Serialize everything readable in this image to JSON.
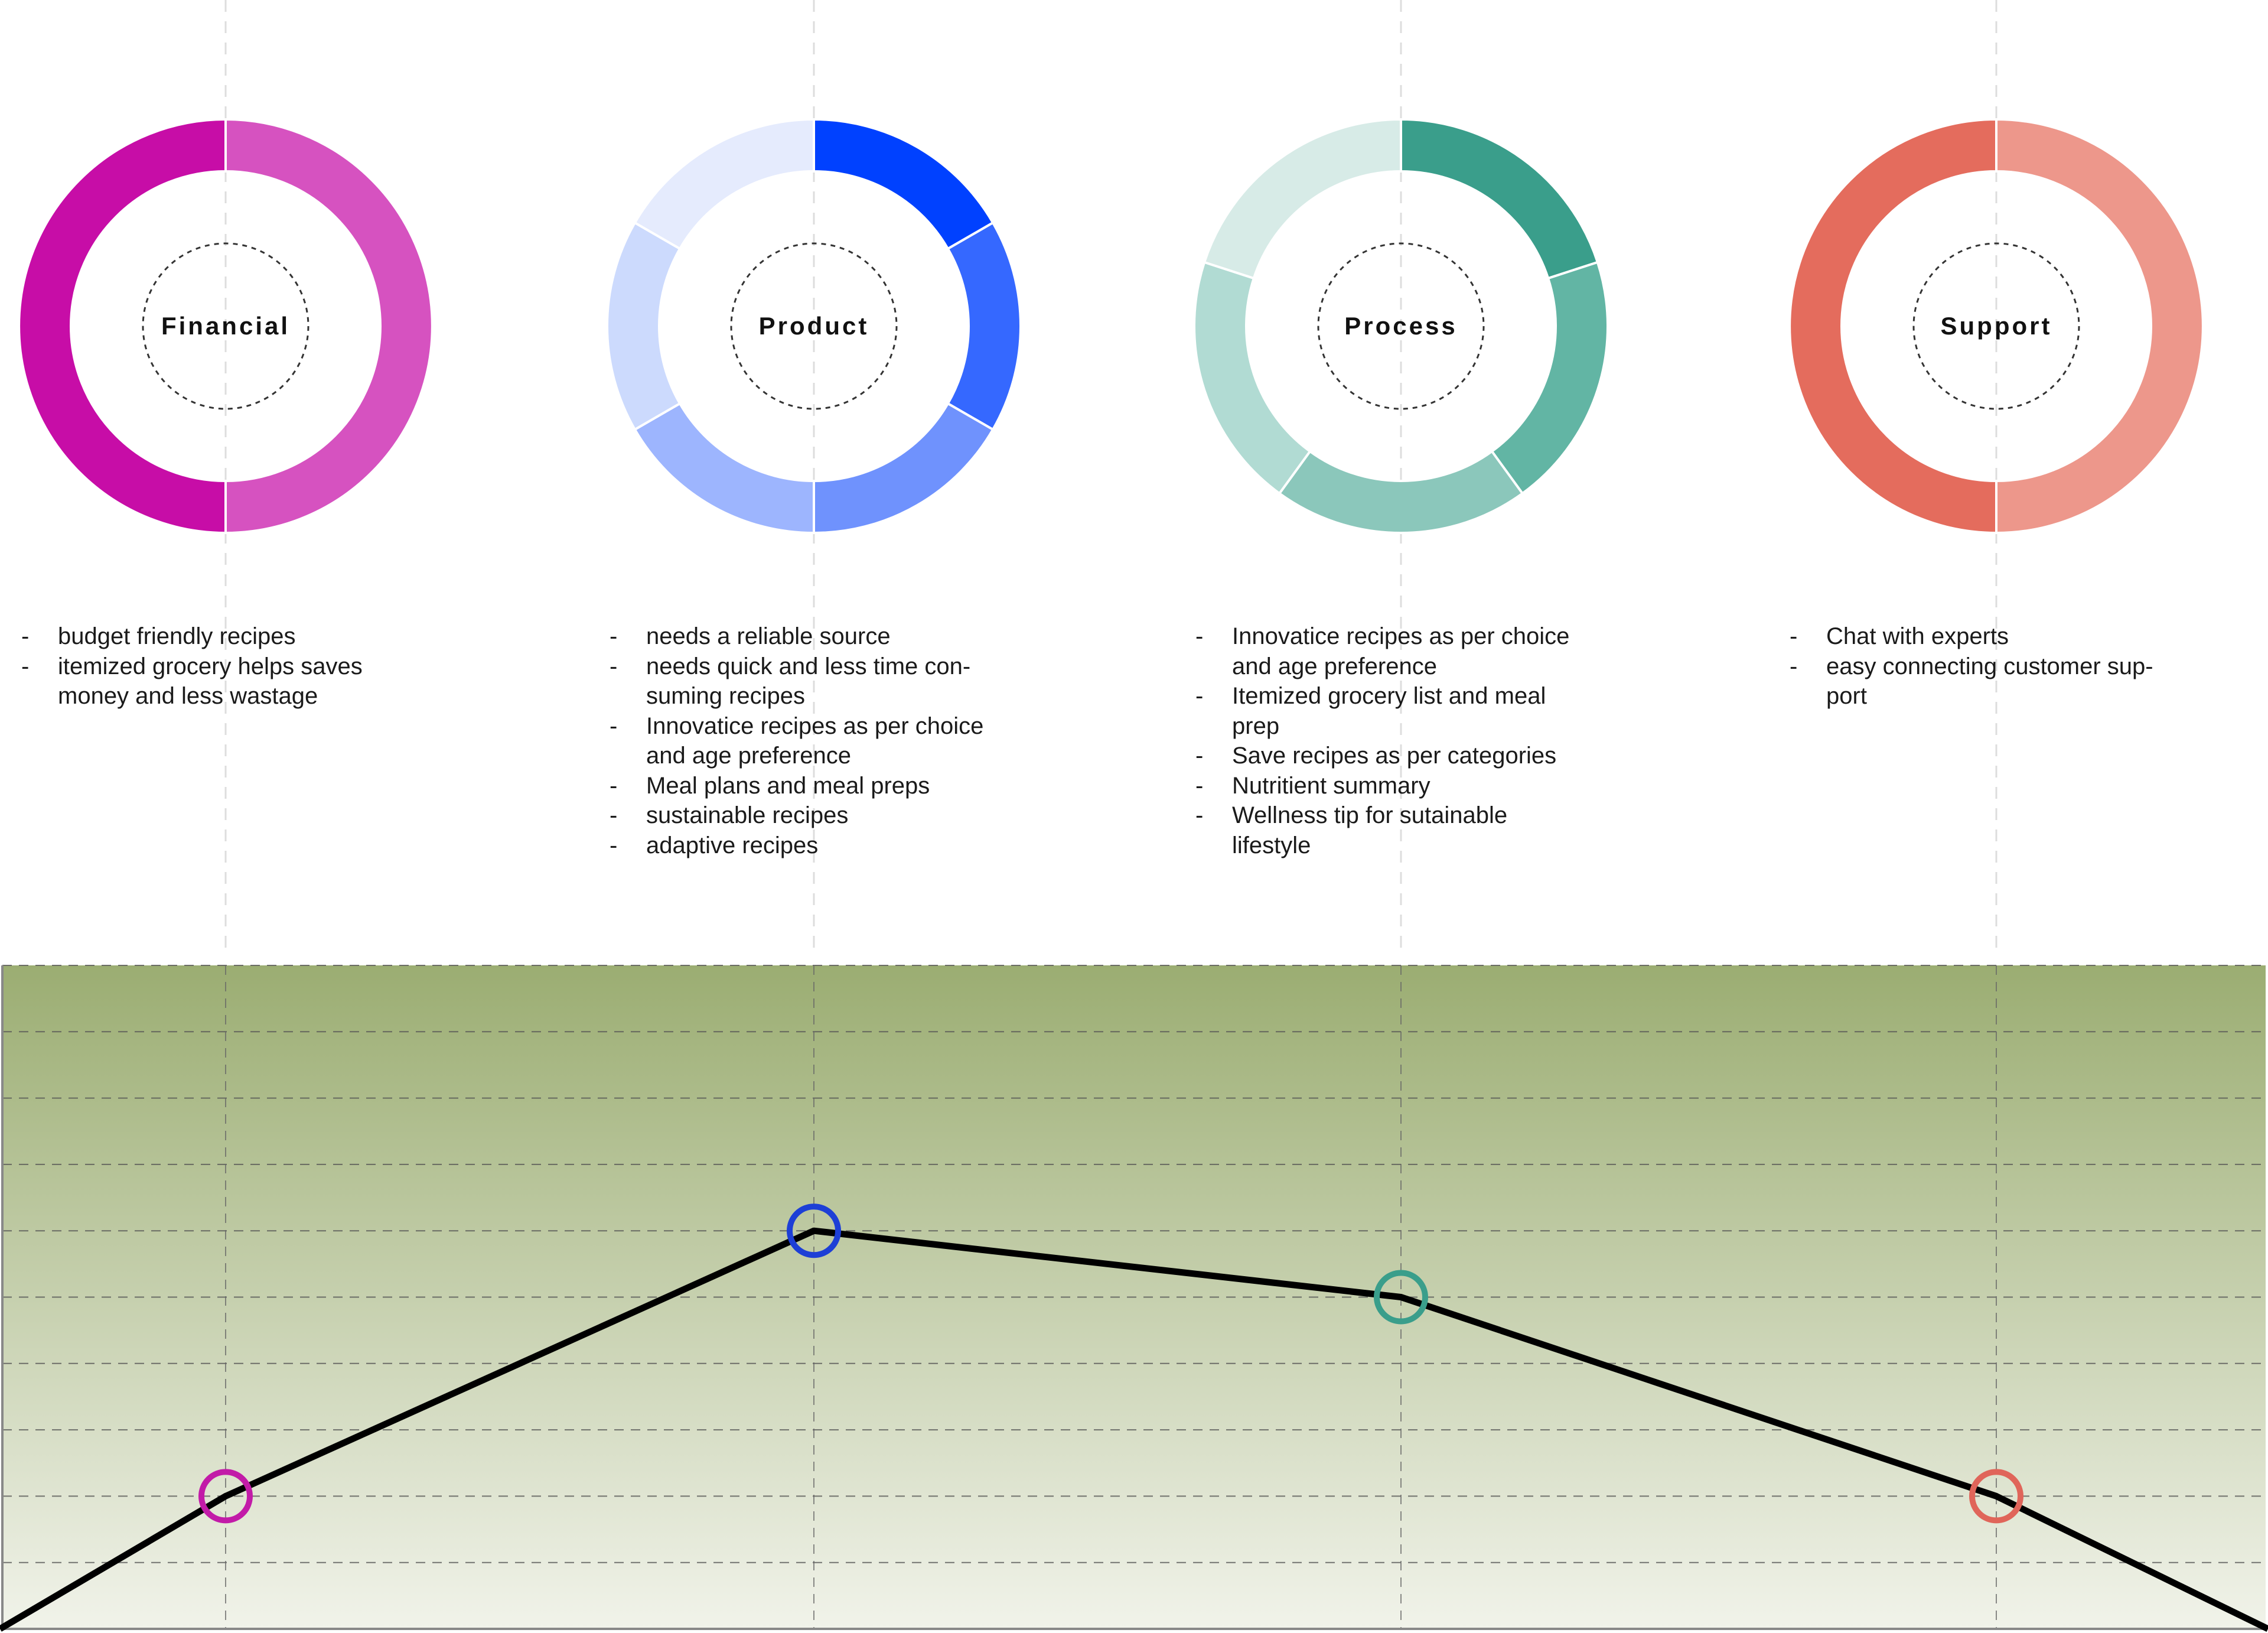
{
  "stages": [
    {
      "label": "Financial",
      "segment_colors": [
        "#d652c0",
        "#c70da7"
      ],
      "marker_color": "#c21ba8",
      "items": [
        "budget friendly recipes",
        "itemized grocery helps saves\nmoney and less wastage"
      ]
    },
    {
      "label": "Product",
      "segment_colors": [
        "#0041ff",
        "#3568ff",
        "#6f92fd",
        "#9db5fe",
        "#ccdafd",
        "#e5ebfd"
      ],
      "marker_color": "#1d3fd6",
      "items": [
        "needs a reliable source",
        "needs quick and less time con-\nsuming recipes",
        "Innovatice recipes as per choice\nand age preference",
        "Meal plans and meal preps",
        "sustainable recipes",
        "adaptive recipes"
      ]
    },
    {
      "label": "Process",
      "segment_colors": [
        "#3a9e8b",
        "#62b5a4",
        "#8bc7bb",
        "#b1dbd3",
        "#d7ebe7"
      ],
      "marker_color": "#3a9e8b",
      "items": [
        "Innovatice recipes as per choice\nand age preference",
        "Itemized grocery list and meal\nprep",
        "Save recipes as per    categories",
        "Nutritient summary",
        "Wellness tip for   sutainable\nlifestyle"
      ]
    },
    {
      "label": "Support",
      "segment_colors": [
        "#ed978b",
        "#e46c5d"
      ],
      "marker_color": "#e0655a",
      "items": [
        "Chat with experts",
        "easy connecting customer sup-\nport"
      ]
    }
  ],
  "chart_data": {
    "type": "line",
    "x": [
      "",
      "Financial",
      "Product",
      "Process",
      "Support",
      ""
    ],
    "values": [
      0,
      2,
      6,
      5,
      2,
      0
    ],
    "ylim": [
      0,
      10
    ],
    "grid": true,
    "gradient": [
      "#9bad72",
      "#f1f3ea"
    ],
    "line_color": "#000000"
  }
}
